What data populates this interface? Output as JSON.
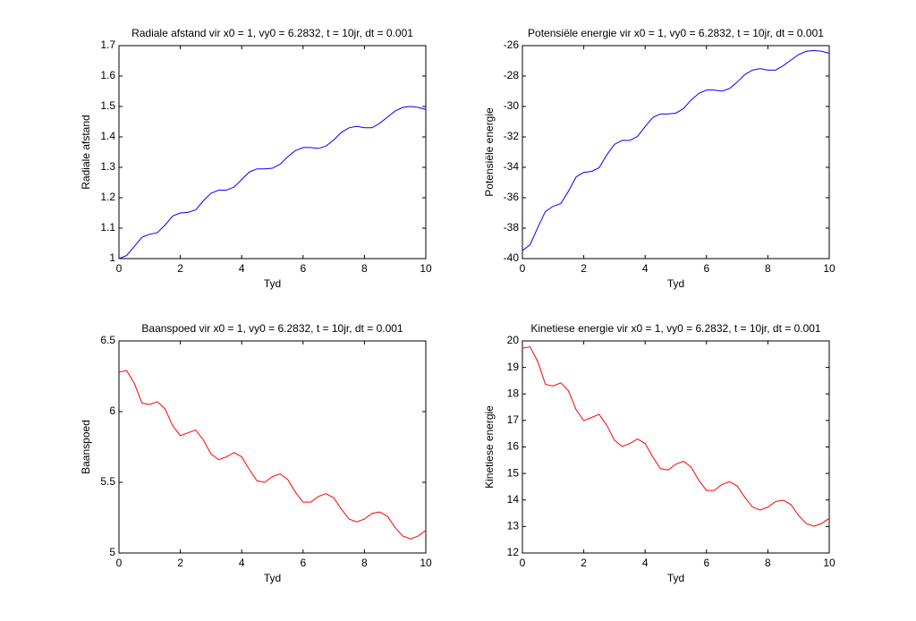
{
  "chart_data": [
    {
      "type": "line",
      "title": "Radiale afstand vir x0 = 1, vy0 = 6.2832, t = 10jr, dt = 0.001",
      "xlabel": "Tyd",
      "ylabel": "Radiale afstand",
      "x": [
        0,
        0.25,
        0.5,
        0.75,
        1,
        1.25,
        1.5,
        1.75,
        2,
        2.25,
        2.5,
        2.75,
        3,
        3.25,
        3.5,
        3.75,
        4,
        4.25,
        4.5,
        4.75,
        5,
        5.25,
        5.5,
        5.75,
        6,
        6.25,
        6.5,
        6.75,
        7,
        7.25,
        7.5,
        7.75,
        8,
        8.25,
        8.5,
        8.75,
        9,
        9.25,
        9.5,
        9.75,
        10
      ],
      "values": [
        1.0,
        1.01,
        1.04,
        1.07,
        1.08,
        1.085,
        1.11,
        1.14,
        1.15,
        1.152,
        1.16,
        1.19,
        1.215,
        1.225,
        1.225,
        1.235,
        1.26,
        1.285,
        1.295,
        1.295,
        1.297,
        1.31,
        1.335,
        1.355,
        1.365,
        1.365,
        1.362,
        1.37,
        1.39,
        1.415,
        1.43,
        1.435,
        1.43,
        1.43,
        1.445,
        1.465,
        1.485,
        1.497,
        1.5,
        1.497,
        1.49
      ],
      "color": "#0000ff",
      "xlim": [
        0,
        10
      ],
      "xticks": [
        0,
        2,
        4,
        6,
        8,
        10
      ],
      "ylim": [
        1,
        1.7
      ],
      "yticks": [
        1,
        1.1,
        1.2,
        1.3,
        1.4,
        1.5,
        1.6,
        1.7
      ]
    },
    {
      "type": "line",
      "title": "Potensiële energie vir x0 = 1, vy0 = 6.2832, t = 10jr, dt = 0.001",
      "xlabel": "Tyd",
      "ylabel": "Potensiële energie",
      "x": [
        0,
        0.25,
        0.5,
        0.75,
        1,
        1.25,
        1.5,
        1.75,
        2,
        2.25,
        2.5,
        2.75,
        3,
        3.25,
        3.5,
        3.75,
        4,
        4.25,
        4.5,
        4.75,
        5,
        5.25,
        5.5,
        5.75,
        6,
        6.25,
        6.5,
        6.75,
        7,
        7.25,
        7.5,
        7.75,
        8,
        8.25,
        8.5,
        8.75,
        9,
        9.25,
        9.5,
        9.75,
        10
      ],
      "values": [
        -39.48,
        -39.09,
        -37.96,
        -36.9,
        -36.56,
        -36.39,
        -35.57,
        -34.63,
        -34.33,
        -34.27,
        -34.03,
        -33.18,
        -32.49,
        -32.23,
        -32.23,
        -31.97,
        -31.33,
        -30.72,
        -30.49,
        -30.49,
        -30.44,
        -30.14,
        -29.57,
        -29.14,
        -28.92,
        -28.92,
        -28.99,
        -28.82,
        -28.4,
        -27.9,
        -27.61,
        -27.51,
        -27.61,
        -27.61,
        -27.32,
        -26.95,
        -26.59,
        -26.37,
        -26.32,
        -26.37,
        -26.5
      ],
      "color": "#0000ff",
      "xlim": [
        0,
        10
      ],
      "xticks": [
        0,
        2,
        4,
        6,
        8,
        10
      ],
      "ylim": [
        -40,
        -26
      ],
      "yticks": [
        -40,
        -38,
        -36,
        -34,
        -32,
        -30,
        -28,
        -26
      ]
    },
    {
      "type": "line",
      "title": "Baanspoed vir x0 = 1, vy0 = 6.2832, t = 10jr, dt = 0.001",
      "xlabel": "Tyd",
      "ylabel": "Baanspoed",
      "x": [
        0,
        0.25,
        0.5,
        0.75,
        1,
        1.25,
        1.5,
        1.75,
        2,
        2.25,
        2.5,
        2.75,
        3,
        3.25,
        3.5,
        3.75,
        4,
        4.25,
        4.5,
        4.75,
        5,
        5.25,
        5.5,
        5.75,
        6,
        6.25,
        6.5,
        6.75,
        7,
        7.25,
        7.5,
        7.75,
        8,
        8.25,
        8.5,
        8.75,
        9,
        9.25,
        9.5,
        9.75,
        10
      ],
      "values": [
        6.28,
        6.29,
        6.2,
        6.06,
        6.05,
        6.07,
        6.02,
        5.9,
        5.83,
        5.85,
        5.87,
        5.8,
        5.7,
        5.66,
        5.68,
        5.71,
        5.68,
        5.59,
        5.51,
        5.5,
        5.54,
        5.56,
        5.52,
        5.43,
        5.36,
        5.36,
        5.4,
        5.42,
        5.39,
        5.31,
        5.24,
        5.22,
        5.24,
        5.28,
        5.29,
        5.26,
        5.18,
        5.12,
        5.1,
        5.12,
        5.16
      ],
      "color": "#ff0000",
      "xlim": [
        0,
        10
      ],
      "xticks": [
        0,
        2,
        4,
        6,
        8,
        10
      ],
      "ylim": [
        5,
        6.5
      ],
      "yticks": [
        5,
        5.5,
        6,
        6.5
      ]
    },
    {
      "type": "line",
      "title": "Kinetiese energie vir x0 = 1, vy0 = 6.2832, t = 10jr, dt = 0.001",
      "xlabel": "Tyd",
      "ylabel": "Kinetiese energie",
      "x": [
        0,
        0.25,
        0.5,
        0.75,
        1,
        1.25,
        1.5,
        1.75,
        2,
        2.25,
        2.5,
        2.75,
        3,
        3.25,
        3.5,
        3.75,
        4,
        4.25,
        4.5,
        4.75,
        5,
        5.25,
        5.5,
        5.75,
        6,
        6.25,
        6.5,
        6.75,
        7,
        7.25,
        7.5,
        7.75,
        8,
        8.25,
        8.5,
        8.75,
        9,
        9.25,
        9.5,
        9.75,
        10
      ],
      "values": [
        19.72,
        19.78,
        19.22,
        18.36,
        18.3,
        18.42,
        18.12,
        17.41,
        16.99,
        17.11,
        17.23,
        16.82,
        16.25,
        16.02,
        16.13,
        16.3,
        16.13,
        15.62,
        15.18,
        15.13,
        15.35,
        15.46,
        15.24,
        14.74,
        14.36,
        14.36,
        14.58,
        14.69,
        14.53,
        14.1,
        13.73,
        13.62,
        13.73,
        13.94,
        13.99,
        13.83,
        13.42,
        13.11,
        13.01,
        13.11,
        13.31
      ],
      "color": "#ff0000",
      "xlim": [
        0,
        10
      ],
      "xticks": [
        0,
        2,
        4,
        6,
        8,
        10
      ],
      "ylim": [
        12,
        20
      ],
      "yticks": [
        12,
        13,
        14,
        15,
        16,
        17,
        18,
        19,
        20
      ]
    }
  ]
}
